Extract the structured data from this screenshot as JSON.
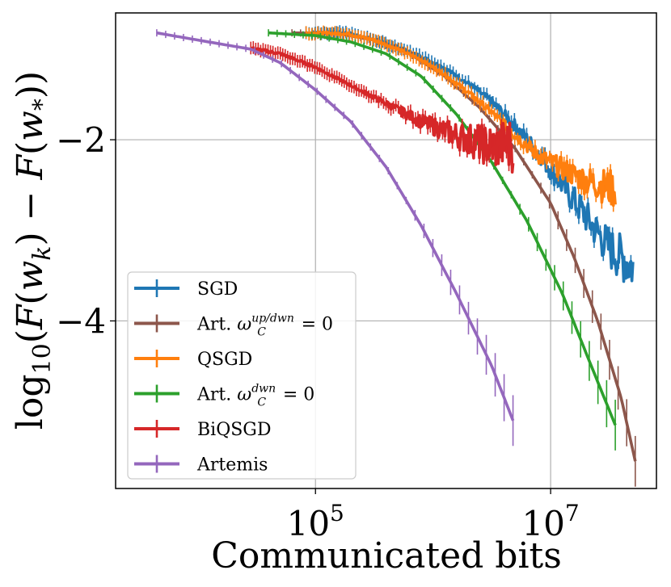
{
  "chart_data": {
    "type": "line",
    "title": "",
    "xlabel": "Communicated bits",
    "ylabel": "log10(F(w_k) − F(w_*))",
    "xscale": "log",
    "xlim_log10": [
      3.3,
      7.9
    ],
    "ylim": [
      -5.85,
      -0.6
    ],
    "grid": true,
    "legend_position": "lower-left",
    "x_ticks": [
      {
        "label_base": "10",
        "label_exp": "5",
        "value_log10": 5
      },
      {
        "label_base": "10",
        "label_exp": "7",
        "value_log10": 7
      }
    ],
    "y_ticks": [
      {
        "label": "−2",
        "value": -2
      },
      {
        "label": "−4",
        "value": -4
      }
    ],
    "series": [
      {
        "name": "SGD",
        "color": "#1f77b4",
        "noise": 0.28,
        "points": [
          [
            4.92,
            -0.82
          ],
          [
            5.27,
            -0.82
          ],
          [
            5.5,
            -0.9
          ],
          [
            5.7,
            -0.98
          ],
          [
            5.9,
            -1.08
          ],
          [
            6.1,
            -1.21
          ],
          [
            6.3,
            -1.38
          ],
          [
            6.5,
            -1.58
          ],
          [
            6.7,
            -1.85
          ],
          [
            6.9,
            -2.15
          ],
          [
            7.1,
            -2.5
          ],
          [
            7.3,
            -2.85
          ],
          [
            7.5,
            -3.2
          ],
          [
            7.7,
            -3.4
          ]
        ]
      },
      {
        "name": "Art. ω_C^{up/dwn} = 0",
        "color": "#8c564b",
        "noise": 0,
        "points": [
          [
            4.8,
            -0.82
          ],
          [
            5.2,
            -0.83
          ],
          [
            5.5,
            -0.9
          ],
          [
            5.8,
            -1.05
          ],
          [
            6.1,
            -1.3
          ],
          [
            6.4,
            -1.65
          ],
          [
            6.7,
            -2.1
          ],
          [
            7.0,
            -2.7
          ],
          [
            7.2,
            -3.3
          ],
          [
            7.4,
            -4.0
          ],
          [
            7.6,
            -4.85
          ],
          [
            7.72,
            -5.55
          ]
        ]
      },
      {
        "name": "QSGD",
        "color": "#ff7f0e",
        "noise": 0.2,
        "points": [
          [
            4.92,
            -0.82
          ],
          [
            5.27,
            -0.83
          ],
          [
            5.5,
            -0.9
          ],
          [
            5.7,
            -1.0
          ],
          [
            5.9,
            -1.12
          ],
          [
            6.1,
            -1.28
          ],
          [
            6.3,
            -1.48
          ],
          [
            6.5,
            -1.7
          ],
          [
            6.7,
            -1.95
          ],
          [
            6.9,
            -2.18
          ],
          [
            7.1,
            -2.32
          ],
          [
            7.3,
            -2.45
          ],
          [
            7.55,
            -2.55
          ]
        ]
      },
      {
        "name": "Art. ω_C^{dwn} = 0",
        "color": "#2ca02c",
        "noise": 0,
        "points": [
          [
            4.6,
            -0.82
          ],
          [
            5.0,
            -0.85
          ],
          [
            5.3,
            -0.92
          ],
          [
            5.6,
            -1.05
          ],
          [
            5.9,
            -1.3
          ],
          [
            6.2,
            -1.72
          ],
          [
            6.5,
            -2.25
          ],
          [
            6.8,
            -2.9
          ],
          [
            7.1,
            -3.7
          ],
          [
            7.3,
            -4.35
          ],
          [
            7.55,
            -5.15
          ]
        ]
      },
      {
        "name": "BiQSGD",
        "color": "#d62728",
        "noise": 0.3,
        "points": [
          [
            4.45,
            -0.99
          ],
          [
            4.7,
            -1.05
          ],
          [
            5.0,
            -1.2
          ],
          [
            5.3,
            -1.4
          ],
          [
            5.6,
            -1.6
          ],
          [
            5.9,
            -1.8
          ],
          [
            6.2,
            -1.95
          ],
          [
            6.5,
            -2.08
          ],
          [
            6.68,
            -2.05
          ]
        ]
      },
      {
        "name": "Artemis",
        "color": "#9467bd",
        "noise": 0,
        "points": [
          [
            3.65,
            -0.82
          ],
          [
            4.0,
            -0.9
          ],
          [
            4.45,
            -1.0
          ],
          [
            4.7,
            -1.15
          ],
          [
            5.0,
            -1.45
          ],
          [
            5.3,
            -1.8
          ],
          [
            5.6,
            -2.3
          ],
          [
            5.9,
            -2.95
          ],
          [
            6.2,
            -3.7
          ],
          [
            6.5,
            -4.5
          ],
          [
            6.68,
            -5.1
          ]
        ]
      }
    ]
  }
}
